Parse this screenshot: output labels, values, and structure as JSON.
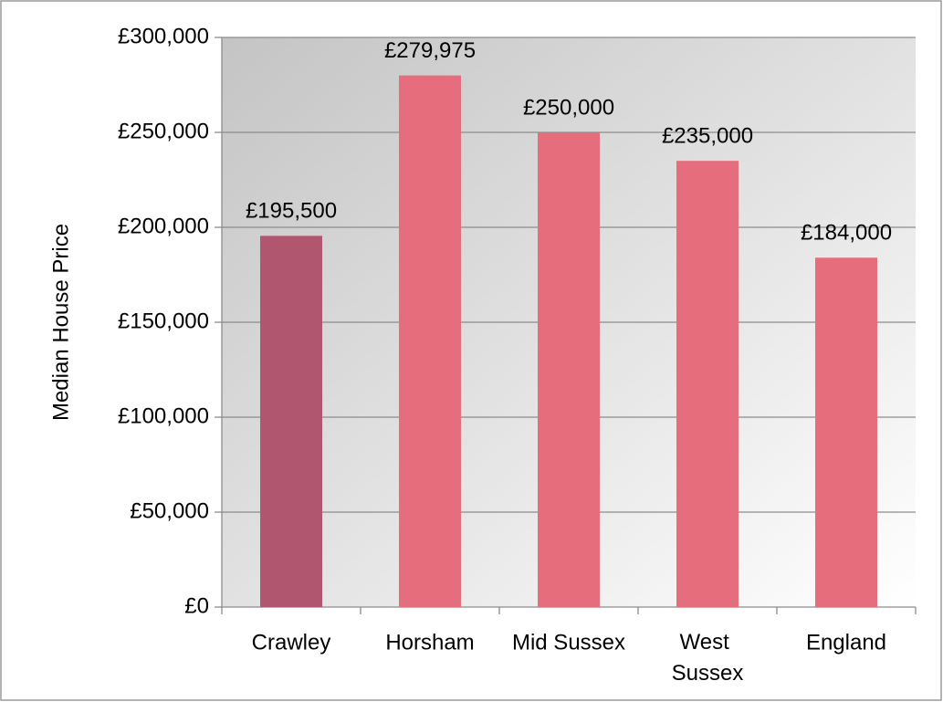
{
  "chart_data": {
    "type": "bar",
    "y_label": "Median House Price",
    "categories": [
      "Crawley",
      "Horsham",
      "Mid Sussex",
      "West Sussex",
      "England"
    ],
    "values": [
      195500,
      279975,
      250000,
      235000,
      184000
    ],
    "value_labels": [
      "£195,500",
      "£279,975",
      "£250,000",
      "£235,000",
      "£184,000"
    ],
    "colors": [
      "#b0566f",
      "#e56d7c",
      "#e56d7c",
      "#e56d7c",
      "#e56d7c"
    ],
    "ylim": [
      0,
      300000
    ],
    "yticks": [
      {
        "value": 0,
        "label": "£0"
      },
      {
        "value": 50000,
        "label": "£50,000"
      },
      {
        "value": 100000,
        "label": "£100,000"
      },
      {
        "value": 150000,
        "label": "£150,000"
      },
      {
        "value": 200000,
        "label": "£200,000"
      },
      {
        "value": 250000,
        "label": "£250,000"
      },
      {
        "value": 300000,
        "label": "£300,000"
      }
    ],
    "grid": true
  }
}
